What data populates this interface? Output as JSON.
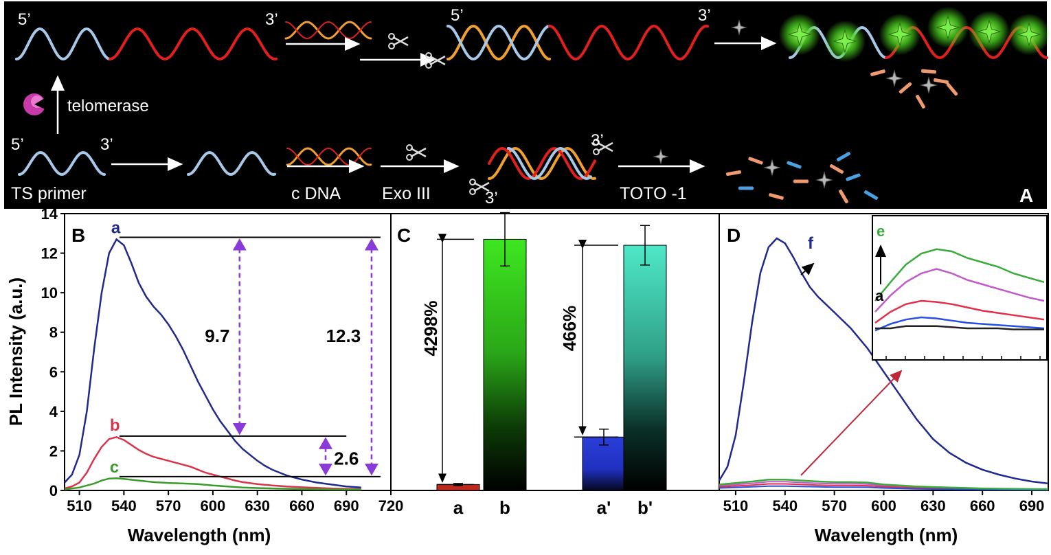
{
  "scheme": {
    "panel_letter": "A",
    "top_row": {
      "label_5": "5’",
      "label_3": "3’",
      "label_5b": "5’",
      "label_3b": "3’"
    },
    "enzyme_label": "telomerase",
    "bottom_row": {
      "label_5": "5’",
      "label_3": "3’",
      "primer_label": "TS primer",
      "step_cdna": "c DNA",
      "step_exo": "Exo III",
      "step_dye": "TOTO -1",
      "label_3a": "3’",
      "label_3b": "3’"
    },
    "colors": {
      "background": "#000000",
      "primer_strand": "#a8c8e8",
      "telomere_strand": "#e0201c",
      "cdna_strand": "#f0a030",
      "dye_glow": "#5ee03a",
      "fragment_orange": "#f09a70",
      "fragment_blue": "#4aa0e0"
    }
  },
  "chart_data": [
    {
      "panel": "B",
      "type": "line",
      "xlabel": "Wavelength (nm)",
      "ylabel": "PL Intensity (a.u.)",
      "xlim": [
        500,
        720
      ],
      "ylim": [
        0,
        14
      ],
      "xticks": [
        510,
        540,
        570,
        600,
        630,
        660,
        690,
        720
      ],
      "yticks": [
        0,
        2,
        4,
        6,
        8,
        10,
        12,
        14
      ],
      "series": [
        {
          "name": "a",
          "color": "#1f2a8c",
          "x": [
            500,
            505,
            510,
            515,
            520,
            525,
            530,
            535,
            540,
            545,
            550,
            555,
            560,
            565,
            570,
            575,
            580,
            585,
            590,
            595,
            600,
            605,
            610,
            615,
            620,
            625,
            630,
            635,
            640,
            645,
            650,
            660,
            670,
            680,
            690,
            700
          ],
          "y": [
            0.4,
            0.8,
            1.8,
            4.0,
            7.2,
            10.0,
            12.0,
            12.7,
            12.4,
            11.5,
            10.5,
            9.8,
            9.3,
            8.9,
            8.4,
            7.8,
            7.1,
            6.3,
            5.5,
            4.8,
            4.1,
            3.5,
            3.0,
            2.5,
            2.1,
            1.8,
            1.5,
            1.25,
            1.05,
            0.9,
            0.75,
            0.55,
            0.4,
            0.3,
            0.2,
            0.15
          ]
        },
        {
          "name": "b",
          "color": "#d8344a",
          "x": [
            500,
            505,
            510,
            515,
            520,
            525,
            530,
            535,
            540,
            545,
            550,
            555,
            560,
            565,
            570,
            575,
            580,
            585,
            590,
            595,
            600,
            605,
            610,
            615,
            620,
            630,
            640,
            650,
            660,
            670,
            680,
            690,
            700
          ],
          "y": [
            0.1,
            0.2,
            0.4,
            0.9,
            1.6,
            2.2,
            2.6,
            2.7,
            2.55,
            2.3,
            2.05,
            1.85,
            1.7,
            1.6,
            1.5,
            1.4,
            1.3,
            1.2,
            1.05,
            0.9,
            0.8,
            0.7,
            0.6,
            0.5,
            0.42,
            0.32,
            0.25,
            0.2,
            0.16,
            0.13,
            0.1,
            0.08,
            0.06
          ]
        },
        {
          "name": "c",
          "color": "#3a9a2a",
          "x": [
            500,
            510,
            520,
            525,
            530,
            535,
            540,
            550,
            560,
            570,
            580,
            590,
            600,
            610,
            620,
            630,
            640,
            660,
            680,
            700
          ],
          "y": [
            0.05,
            0.15,
            0.35,
            0.5,
            0.6,
            0.62,
            0.58,
            0.5,
            0.42,
            0.38,
            0.35,
            0.32,
            0.25,
            0.2,
            0.15,
            0.12,
            0.1,
            0.07,
            0.05,
            0.04
          ]
        }
      ],
      "annotations": {
        "diff_ab": "9.7",
        "diff_ac": "12.3",
        "diff_bc": "2.6",
        "ref_a": 12.8,
        "ref_b": 2.75,
        "ref_c": 0.7
      }
    },
    {
      "panel": "C",
      "type": "bar",
      "categories": [
        "a",
        "b",
        "a'",
        "b'"
      ],
      "values": [
        0.3,
        12.7,
        2.7,
        12.4
      ],
      "errors": [
        0.05,
        1.35,
        0.4,
        1.0
      ],
      "ylim": [
        0,
        14
      ],
      "colors": [
        "#c0281e",
        "#3ee620",
        "#2a3fd8",
        "#3fe0c0"
      ],
      "annotations": {
        "pct_ab": "4298%",
        "pct_a2b2": "466%"
      }
    },
    {
      "panel": "D",
      "type": "line",
      "xlabel": "Wavelength (nm)",
      "xlim": [
        500,
        700
      ],
      "ylim": [
        0,
        14
      ],
      "xticks": [
        510,
        540,
        570,
        600,
        630,
        660,
        690
      ],
      "series": [
        {
          "name": "f",
          "color": "#1f2a8c",
          "x": [
            500,
            505,
            510,
            515,
            520,
            525,
            530,
            535,
            540,
            545,
            550,
            555,
            560,
            565,
            570,
            575,
            580,
            585,
            590,
            595,
            600,
            605,
            610,
            615,
            620,
            625,
            630,
            640,
            650,
            660,
            670,
            680,
            690,
            700
          ],
          "y": [
            0.5,
            1.2,
            2.8,
            5.5,
            8.5,
            11.0,
            12.3,
            12.75,
            12.5,
            11.8,
            11.0,
            10.3,
            9.8,
            9.4,
            9.0,
            8.6,
            8.2,
            7.7,
            7.2,
            6.6,
            6.0,
            5.4,
            4.8,
            4.2,
            3.6,
            3.1,
            2.6,
            1.9,
            1.4,
            1.05,
            0.8,
            0.6,
            0.45,
            0.35
          ]
        },
        {
          "name": "e",
          "color": "#3aaa3a",
          "x": [
            500,
            520,
            530,
            540,
            550,
            560,
            570,
            580,
            590,
            600,
            620,
            640,
            660,
            680,
            700
          ],
          "y": [
            0.3,
            0.45,
            0.55,
            0.55,
            0.5,
            0.45,
            0.42,
            0.42,
            0.4,
            0.3,
            0.2,
            0.15,
            0.1,
            0.08,
            0.06
          ]
        }
      ],
      "inset": {
        "label_top": "e",
        "label_bottom": "a",
        "series": [
          {
            "color": "#3aaa3a",
            "y": [
              0.45,
              0.62,
              0.78,
              0.88,
              0.92,
              0.9,
              0.84,
              0.8,
              0.76,
              0.7,
              0.66,
              0.62
            ]
          },
          {
            "color": "#c05ac8",
            "y": [
              0.35,
              0.5,
              0.62,
              0.7,
              0.74,
              0.7,
              0.64,
              0.6,
              0.56,
              0.52,
              0.48,
              0.45
            ]
          },
          {
            "color": "#e0304a",
            "y": [
              0.25,
              0.35,
              0.42,
              0.45,
              0.44,
              0.42,
              0.39,
              0.36,
              0.34,
              0.32,
              0.3,
              0.28
            ]
          },
          {
            "color": "#2850e0",
            "y": [
              0.18,
              0.24,
              0.28,
              0.3,
              0.29,
              0.27,
              0.25,
              0.24,
              0.23,
              0.22,
              0.21,
              0.2
            ]
          },
          {
            "color": "#222222",
            "y": [
              0.2,
              0.2,
              0.22,
              0.22,
              0.22,
              0.21,
              0.2,
              0.2,
              0.2,
              0.19,
              0.19,
              0.19
            ]
          }
        ]
      }
    }
  ],
  "panel_letters": {
    "b": "B",
    "c": "C",
    "d": "D"
  }
}
